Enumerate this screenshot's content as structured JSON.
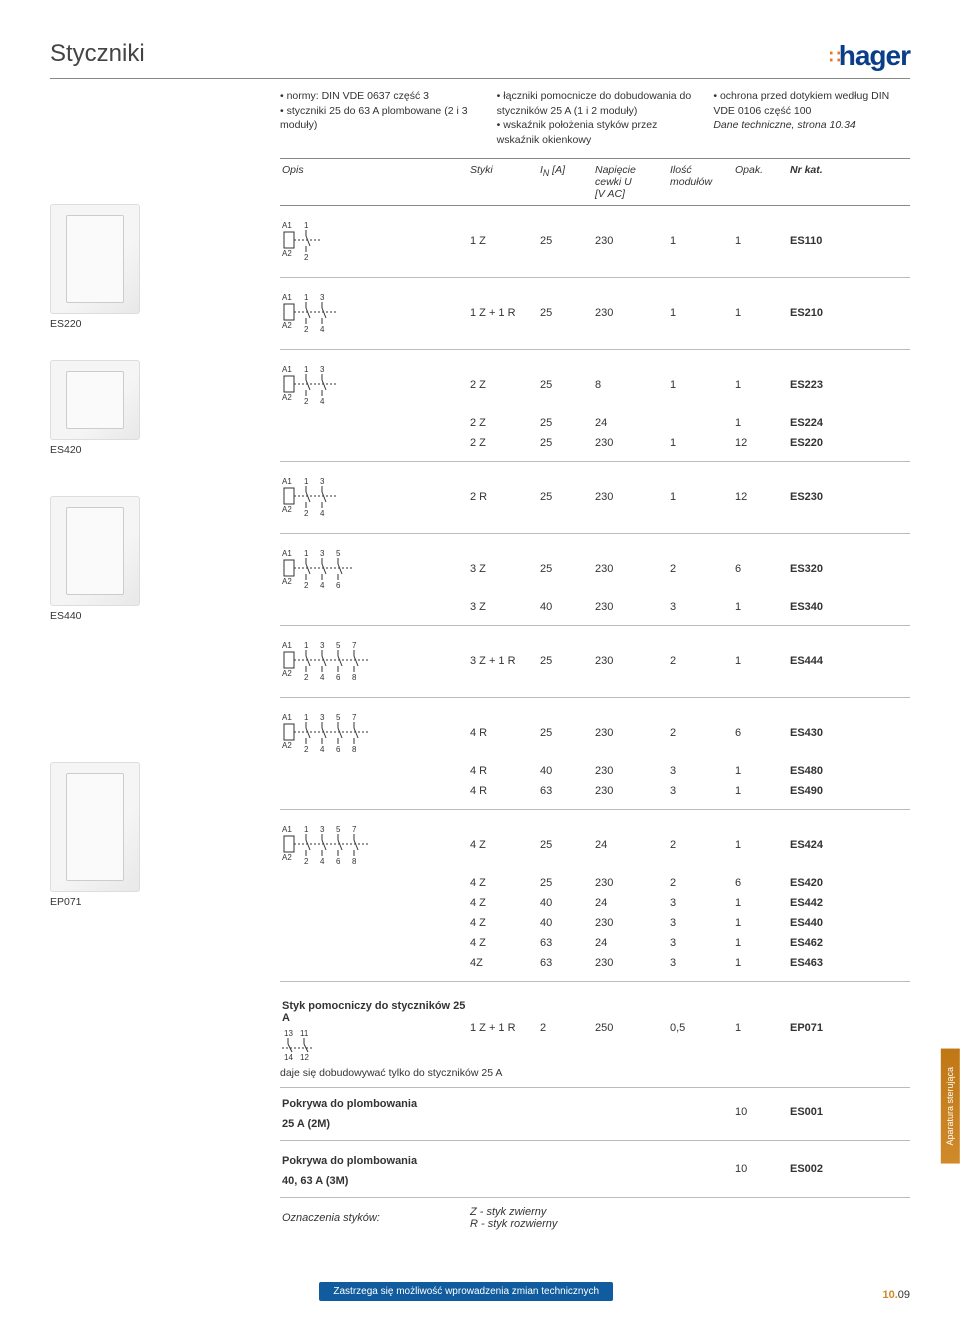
{
  "header": {
    "title": "Styczniki",
    "logo_text": "hager"
  },
  "intro": {
    "col1": [
      "normy: DIN VDE 0637 część 3",
      "styczniki 25 do 63 A plombowane (2 i 3 moduły)"
    ],
    "col2": [
      "łączniki pomocnicze do dobudowania do styczników 25 A (1 i 2 moduły)",
      "wskaźnik położenia styków przez wskaźnik okienkowy"
    ],
    "col3_bullets": [
      "ochrona przed dotykiem według DIN VDE 0106 część 100"
    ],
    "col3_italic": "Dane techniczne, strona 10.34"
  },
  "table_head": {
    "opis": "Opis",
    "styki": "Styki",
    "in": "I",
    "in_sub": "N",
    "in_unit": " [A]",
    "nap_l1": "Napięcie",
    "nap_l2": "cewki U",
    "nap_l3": "[V AC]",
    "ilosc_l1": "Ilość",
    "ilosc_l2": "modułów",
    "opak": "Opak.",
    "kat": "Nr kat."
  },
  "products": [
    {
      "label": "",
      "img": true
    },
    {
      "label": "ES220",
      "img": true
    },
    {
      "label": "",
      "img": true,
      "short": true
    },
    {
      "label": "ES420",
      "img": false
    },
    {
      "label": "",
      "img": true
    },
    {
      "label": "ES440",
      "img": false
    },
    {
      "label": "",
      "img": true,
      "tall": true
    },
    {
      "label": "EP071",
      "img": false
    }
  ],
  "sections": [
    {
      "schematic_pins": 1,
      "rows": [
        {
          "styki": "1 Z",
          "in": "25",
          "nap": "230",
          "ilosc": "1",
          "opak": "1",
          "kat": "ES110"
        }
      ]
    },
    {
      "schematic_pins": 2,
      "rows": [
        {
          "styki": "1 Z + 1 R",
          "in": "25",
          "nap": "230",
          "ilosc": "1",
          "opak": "1",
          "kat": "ES210"
        }
      ]
    },
    {
      "schematic_pins": 2,
      "rows": [
        {
          "styki": "2 Z",
          "in": "25",
          "nap": "8",
          "ilosc": "1",
          "opak": "1",
          "kat": "ES223"
        },
        {
          "styki": "2 Z",
          "in": "25",
          "nap": "24",
          "ilosc": "",
          "opak": "1",
          "kat": "ES224"
        },
        {
          "styki": "2 Z",
          "in": "25",
          "nap": "230",
          "ilosc": "1",
          "opak": "12",
          "kat": "ES220"
        }
      ]
    },
    {
      "schematic_pins": 2,
      "rows": [
        {
          "styki": "2 R",
          "in": "25",
          "nap": "230",
          "ilosc": "1",
          "opak": "12",
          "kat": "ES230"
        }
      ]
    },
    {
      "schematic_pins": 3,
      "rows": [
        {
          "styki": "3 Z",
          "in": "25",
          "nap": "230",
          "ilosc": "2",
          "opak": "6",
          "kat": "ES320"
        },
        {
          "styki": "3 Z",
          "in": "40",
          "nap": "230",
          "ilosc": "3",
          "opak": "1",
          "kat": "ES340"
        }
      ]
    },
    {
      "schematic_pins": 4,
      "rows": [
        {
          "styki": "3 Z + 1 R",
          "in": "25",
          "nap": "230",
          "ilosc": "2",
          "opak": "1",
          "kat": "ES444"
        }
      ]
    },
    {
      "schematic_pins": 4,
      "rows": [
        {
          "styki": "4 R",
          "in": "25",
          "nap": "230",
          "ilosc": "2",
          "opak": "6",
          "kat": "ES430"
        },
        {
          "styki": "4 R",
          "in": "40",
          "nap": "230",
          "ilosc": "3",
          "opak": "1",
          "kat": "ES480"
        },
        {
          "styki": "4 R",
          "in": "63",
          "nap": "230",
          "ilosc": "3",
          "opak": "1",
          "kat": "ES490"
        }
      ]
    },
    {
      "schematic_pins": 4,
      "rows": [
        {
          "styki": "4 Z",
          "in": "25",
          "nap": "24",
          "ilosc": "2",
          "opak": "1",
          "kat": "ES424"
        },
        {
          "styki": "4 Z",
          "in": "25",
          "nap": "230",
          "ilosc": "2",
          "opak": "6",
          "kat": "ES420"
        },
        {
          "styki": "4 Z",
          "in": "40",
          "nap": "24",
          "ilosc": "3",
          "opak": "1",
          "kat": "ES442"
        },
        {
          "styki": "4 Z",
          "in": "40",
          "nap": "230",
          "ilosc": "3",
          "opak": "1",
          "kat": "ES440"
        },
        {
          "styki": "4 Z",
          "in": "63",
          "nap": "24",
          "ilosc": "3",
          "opak": "1",
          "kat": "ES462"
        },
        {
          "styki": "4Z",
          "in": "63",
          "nap": "230",
          "ilosc": "3",
          "opak": "1",
          "kat": "ES463"
        }
      ]
    }
  ],
  "aux_section": {
    "title": "Styk pomocniczy do styczników 25 A",
    "note": "daje się dobudowywać tylko do styczników 25 A",
    "row": {
      "styki": "1 Z + 1 R",
      "in": "2",
      "nap": "250",
      "ilosc": "0,5",
      "opak": "1",
      "kat": "EP071"
    },
    "covers": [
      {
        "l1": "Pokrywa do plombowania",
        "l2": "25 A (2M)",
        "opak": "10",
        "kat": "ES001"
      },
      {
        "l1": "Pokrywa do plombowania",
        "l2": "40, 63 A (3M)",
        "opak": "10",
        "kat": "ES002"
      }
    ],
    "legend_label": "Oznaczenia styków:",
    "legend_z": "Z - styk zwierny",
    "legend_r": "R - styk rozwierny"
  },
  "footer": {
    "note": "Zastrzega się możliwość wprowadzenia zmian technicznych",
    "page_main": "10.",
    "page_sub": "09"
  },
  "side_tab": "Aparatura sterująca"
}
